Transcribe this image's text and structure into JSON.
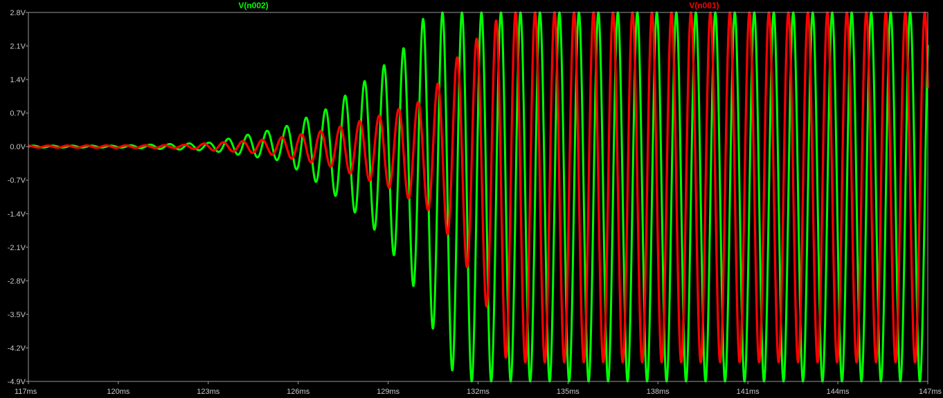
{
  "chart_data": {
    "type": "line",
    "title": "",
    "xlabel": "",
    "ylabel": "",
    "x_unit": "ms",
    "xlim": [
      117,
      147
    ],
    "ylim": [
      -4.9,
      2.8
    ],
    "x_ticks": [
      "117ms",
      "120ms",
      "123ms",
      "126ms",
      "129ms",
      "132ms",
      "135ms",
      "138ms",
      "141ms",
      "144ms",
      "147ms"
    ],
    "y_ticks": [
      "2.8V",
      "2.1V",
      "1.4V",
      "0.7V",
      "0.0V",
      "-0.7V",
      "-1.4V",
      "-2.1V",
      "-2.8V",
      "-3.5V",
      "-4.2V",
      "-4.9V"
    ],
    "grid": false,
    "legend_position": "top",
    "series": [
      {
        "name": "V(n002)",
        "color": "#00ff00",
        "period_ms": 0.65,
        "envelope": [
          {
            "x": 117,
            "max": 0.02,
            "min": -0.02
          },
          {
            "x": 120,
            "max": 0.02,
            "min": -0.02
          },
          {
            "x": 123,
            "max": 0.08,
            "min": -0.08
          },
          {
            "x": 125.5,
            "max": 0.4,
            "min": -0.3
          },
          {
            "x": 127,
            "max": 0.8,
            "min": -0.9
          },
          {
            "x": 128.5,
            "max": 1.5,
            "min": -1.7
          },
          {
            "x": 129.6,
            "max": 2.1,
            "min": -2.6
          },
          {
            "x": 130.3,
            "max": 2.8,
            "min": -3.5
          },
          {
            "x": 131.0,
            "max": 2.8,
            "min": -4.6
          },
          {
            "x": 131.6,
            "max": 2.8,
            "min": -4.9
          },
          {
            "x": 147,
            "max": 2.8,
            "min": -4.9
          }
        ]
      },
      {
        "name": "V(n001)",
        "color": "#ff0000",
        "period_ms": 0.65,
        "envelope": [
          {
            "x": 117,
            "max": 0.02,
            "min": -0.02
          },
          {
            "x": 122,
            "max": 0.03,
            "min": -0.03
          },
          {
            "x": 125,
            "max": 0.15,
            "min": -0.15
          },
          {
            "x": 127,
            "max": 0.35,
            "min": -0.4
          },
          {
            "x": 129,
            "max": 0.7,
            "min": -0.85
          },
          {
            "x": 130.3,
            "max": 1.0,
            "min": -1.3
          },
          {
            "x": 131.2,
            "max": 1.8,
            "min": -2.0
          },
          {
            "x": 132.2,
            "max": 2.4,
            "min": -3.2
          },
          {
            "x": 132.9,
            "max": 2.8,
            "min": -4.4
          },
          {
            "x": 133.5,
            "max": 2.8,
            "min": -4.5
          },
          {
            "x": 147,
            "max": 2.8,
            "min": -4.5
          }
        ]
      }
    ]
  }
}
